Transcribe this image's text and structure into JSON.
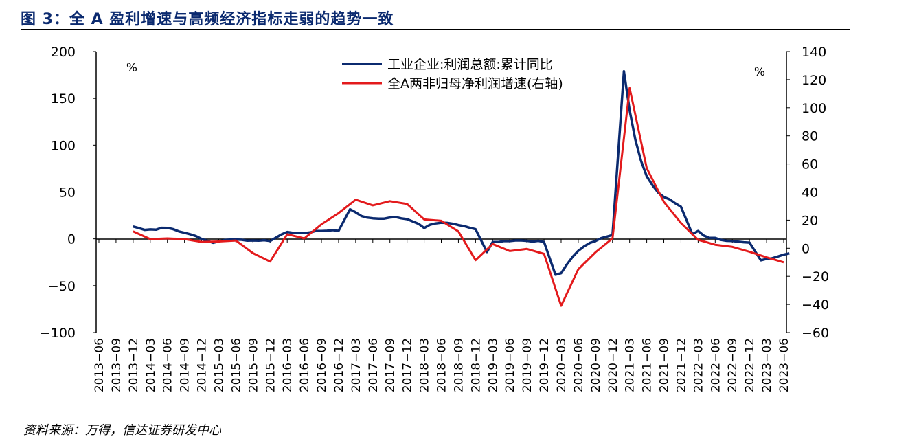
{
  "figure": {
    "title": "图 3：全 A 盈利增速与高频经济指标走弱的趋势一致",
    "source": "资料来源：万得，信达证券研发中心"
  },
  "chart_data": {
    "type": "line",
    "left_axis": {
      "unit": "%",
      "ylim": [
        -100,
        200
      ],
      "ticks": [
        "200",
        "150",
        "100",
        "50",
        "0",
        "−50",
        "−100"
      ]
    },
    "right_axis": {
      "unit": "%",
      "ylim": [
        -60,
        140
      ],
      "ticks": [
        "140",
        "120",
        "100",
        "80",
        "60",
        "40",
        "20",
        "0",
        "−20",
        "−40",
        "−60"
      ]
    },
    "x_ticks": [
      "2013−06",
      "2013−09",
      "2013−12",
      "2014−03",
      "2014−06",
      "2014−09",
      "2014−12",
      "2015−03",
      "2015−06",
      "2015−09",
      "2015−12",
      "2016−03",
      "2016−06",
      "2016−09",
      "2016−12",
      "2017−03",
      "2017−06",
      "2017−09",
      "2017−12",
      "2018−03",
      "2018−06",
      "2018−09",
      "2018−12",
      "2019−03",
      "2019−06",
      "2019−09",
      "2019−12",
      "2020−03",
      "2020−06",
      "2020−09",
      "2020−12",
      "2021−03",
      "2021−06",
      "2021−09",
      "2021−12",
      "2022−03",
      "2022−06",
      "2022−09",
      "2022−12",
      "2023−03",
      "2023−06"
    ],
    "legend": {
      "placement": "top-center"
    },
    "series": [
      {
        "name": "工业企业:利润总额:累计同比",
        "axis": "left",
        "color": "#0b2a6f",
        "points": [
          [
            "2013-12",
            13.2
          ],
          [
            "2014-01",
            11.5
          ],
          [
            "2014-02",
            9.6
          ],
          [
            "2014-03",
            10.1
          ],
          [
            "2014-04",
            9.8
          ],
          [
            "2014-05",
            11.8
          ],
          [
            "2014-06",
            11.7
          ],
          [
            "2014-07",
            10.4
          ],
          [
            "2014-08",
            8.0
          ],
          [
            "2014-09",
            6.5
          ],
          [
            "2014-10",
            5.0
          ],
          [
            "2014-11",
            3.0
          ],
          [
            "2014-12",
            0.0
          ],
          [
            "2015-02",
            -4.2
          ],
          [
            "2015-03",
            -2.7
          ],
          [
            "2015-04",
            -1.3
          ],
          [
            "2015-05",
            -0.8
          ],
          [
            "2015-06",
            -0.7
          ],
          [
            "2015-07",
            -1.0
          ],
          [
            "2015-08",
            -1.9
          ],
          [
            "2015-09",
            -1.7
          ],
          [
            "2015-10",
            -1.9
          ],
          [
            "2015-11",
            -1.4
          ],
          [
            "2015-12",
            -2.3
          ],
          [
            "2016-02",
            4.8
          ],
          [
            "2016-03",
            7.4
          ],
          [
            "2016-04",
            6.5
          ],
          [
            "2016-05",
            6.4
          ],
          [
            "2016-06",
            6.2
          ],
          [
            "2016-07",
            6.9
          ],
          [
            "2016-08",
            8.4
          ],
          [
            "2016-09",
            8.4
          ],
          [
            "2016-10",
            8.6
          ],
          [
            "2016-11",
            9.4
          ],
          [
            "2016-12",
            8.5
          ],
          [
            "2017-02",
            31.5
          ],
          [
            "2017-03",
            28.3
          ],
          [
            "2017-04",
            24.4
          ],
          [
            "2017-05",
            22.7
          ],
          [
            "2017-06",
            22.0
          ],
          [
            "2017-07",
            21.6
          ],
          [
            "2017-08",
            21.6
          ],
          [
            "2017-09",
            22.8
          ],
          [
            "2017-10",
            23.3
          ],
          [
            "2017-11",
            21.9
          ],
          [
            "2017-12",
            21.0
          ],
          [
            "2018-02",
            16.1
          ],
          [
            "2018-03",
            11.6
          ],
          [
            "2018-04",
            15.0
          ],
          [
            "2018-05",
            16.5
          ],
          [
            "2018-06",
            17.2
          ],
          [
            "2018-07",
            17.1
          ],
          [
            "2018-08",
            16.2
          ],
          [
            "2018-09",
            14.7
          ],
          [
            "2018-10",
            13.6
          ],
          [
            "2018-11",
            11.8
          ],
          [
            "2018-12",
            10.3
          ],
          [
            "2019-02",
            -14.0
          ],
          [
            "2019-03",
            -3.3
          ],
          [
            "2019-04",
            -3.4
          ],
          [
            "2019-05",
            -2.3
          ],
          [
            "2019-06",
            -2.4
          ],
          [
            "2019-07",
            -1.7
          ],
          [
            "2019-08",
            -1.7
          ],
          [
            "2019-09",
            -2.1
          ],
          [
            "2019-10",
            -2.9
          ],
          [
            "2019-11",
            -2.1
          ],
          [
            "2019-12",
            -3.3
          ],
          [
            "2020-02",
            -38.3
          ],
          [
            "2020-03",
            -36.7
          ],
          [
            "2020-04",
            -27.4
          ],
          [
            "2020-05",
            -19.3
          ],
          [
            "2020-06",
            -12.8
          ],
          [
            "2020-07",
            -8.1
          ],
          [
            "2020-08",
            -4.4
          ],
          [
            "2020-09",
            -2.4
          ],
          [
            "2020-10",
            0.7
          ],
          [
            "2020-11",
            2.4
          ],
          [
            "2020-12",
            4.1
          ],
          [
            "2021-02",
            178.9
          ],
          [
            "2021-03",
            137.3
          ],
          [
            "2021-04",
            106.0
          ],
          [
            "2021-05",
            83.4
          ],
          [
            "2021-06",
            66.9
          ],
          [
            "2021-07",
            57.3
          ],
          [
            "2021-08",
            49.5
          ],
          [
            "2021-09",
            44.7
          ],
          [
            "2021-10",
            42.2
          ],
          [
            "2021-11",
            38.0
          ],
          [
            "2021-12",
            34.3
          ],
          [
            "2022-02",
            5.0
          ],
          [
            "2022-03",
            8.5
          ],
          [
            "2022-04",
            3.5
          ],
          [
            "2022-05",
            1.0
          ],
          [
            "2022-06",
            1.0
          ],
          [
            "2022-07",
            -1.1
          ],
          [
            "2022-08",
            -2.1
          ],
          [
            "2022-09",
            -2.3
          ],
          [
            "2022-10",
            -3.0
          ],
          [
            "2022-11",
            -3.6
          ],
          [
            "2022-12",
            -4.0
          ],
          [
            "2023-02",
            -22.9
          ],
          [
            "2023-03",
            -21.4
          ],
          [
            "2023-04",
            -20.6
          ],
          [
            "2023-05",
            -18.8
          ],
          [
            "2023-06",
            -16.8
          ],
          [
            "2023-07",
            -15.5
          ]
        ]
      },
      {
        "name": "全A两非归母净利润增速(右轴)",
        "axis": "right",
        "color": "#e31a1c",
        "points": [
          [
            "2013-12",
            12.0
          ],
          [
            "2014-03",
            6.5
          ],
          [
            "2014-06",
            7.0
          ],
          [
            "2014-09",
            6.5
          ],
          [
            "2014-12",
            4.5
          ],
          [
            "2015-03",
            4.8
          ],
          [
            "2015-06",
            5.5
          ],
          [
            "2015-09",
            -3.5
          ],
          [
            "2015-12",
            -9.5
          ],
          [
            "2016-03",
            10.0
          ],
          [
            "2016-06",
            7.0
          ],
          [
            "2016-09",
            17.0
          ],
          [
            "2016-12",
            25.0
          ],
          [
            "2017-03",
            34.5
          ],
          [
            "2017-06",
            30.5
          ],
          [
            "2017-09",
            33.5
          ],
          [
            "2017-12",
            31.5
          ],
          [
            "2018-03",
            20.5
          ],
          [
            "2018-06",
            19.5
          ],
          [
            "2018-09",
            12.0
          ],
          [
            "2018-12",
            -8.5
          ],
          [
            "2019-03",
            3.0
          ],
          [
            "2019-06",
            -2.0
          ],
          [
            "2019-09",
            -0.5
          ],
          [
            "2019-12",
            -4.0
          ],
          [
            "2020-03",
            -41.0
          ],
          [
            "2020-06",
            -15.0
          ],
          [
            "2020-09",
            -3.0
          ],
          [
            "2020-12",
            7.0
          ],
          [
            "2021-03",
            114.0
          ],
          [
            "2021-06",
            57.0
          ],
          [
            "2021-09",
            33.0
          ],
          [
            "2021-12",
            18.0
          ],
          [
            "2022-03",
            6.0
          ],
          [
            "2022-06",
            2.5
          ],
          [
            "2022-09",
            1.0
          ],
          [
            "2022-12",
            -2.5
          ],
          [
            "2023-03",
            -6.5
          ],
          [
            "2023-06",
            -10.0
          ]
        ]
      }
    ]
  }
}
